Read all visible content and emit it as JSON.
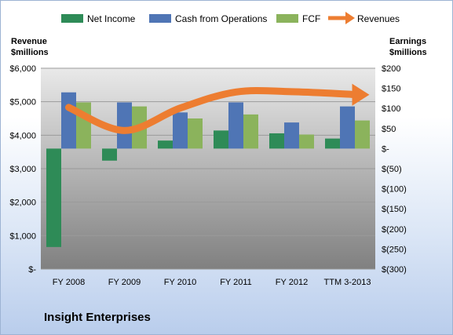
{
  "chart_data": {
    "type": "bar",
    "title": "",
    "company": "Insight Enterprises",
    "categories": [
      "FY 2008",
      "FY 2009",
      "FY 2010",
      "FY 2011",
      "FY 2012",
      "TTM 3-2013"
    ],
    "left_axis": {
      "label_line1": "Revenue",
      "label_line2": "$millions",
      "ylim": [
        0,
        6000
      ],
      "ticks": [
        "$-",
        "$1,000",
        "$2,000",
        "$3,000",
        "$4,000",
        "$5,000",
        "$6,000"
      ]
    },
    "right_axis": {
      "label_line1": "Earnings",
      "label_line2": "$millions",
      "ylim": [
        -300,
        200
      ],
      "ticks": [
        "$(300)",
        "$(250)",
        "$(200)",
        "$(150)",
        "$(100)",
        "$(50)",
        "$-",
        "$50",
        "$100",
        "$150",
        "$200"
      ]
    },
    "series": [
      {
        "name": "Net Income",
        "axis": "right",
        "color": "#2e8b57",
        "values": [
          -245,
          -30,
          20,
          45,
          38,
          25
        ]
      },
      {
        "name": "Cash from Operations",
        "axis": "right",
        "color": "#4f75b5",
        "values": [
          140,
          115,
          90,
          115,
          65,
          105
        ]
      },
      {
        "name": "FCF",
        "axis": "right",
        "color": "#8bb35c",
        "values": [
          115,
          105,
          75,
          85,
          35,
          70
        ]
      },
      {
        "name": "Revenues",
        "axis": "left",
        "type": "line",
        "color": "#ed7d31",
        "values": [
          4830,
          4140,
          4810,
          5290,
          5300,
          5210
        ]
      }
    ],
    "grid": true,
    "legend": "top"
  }
}
